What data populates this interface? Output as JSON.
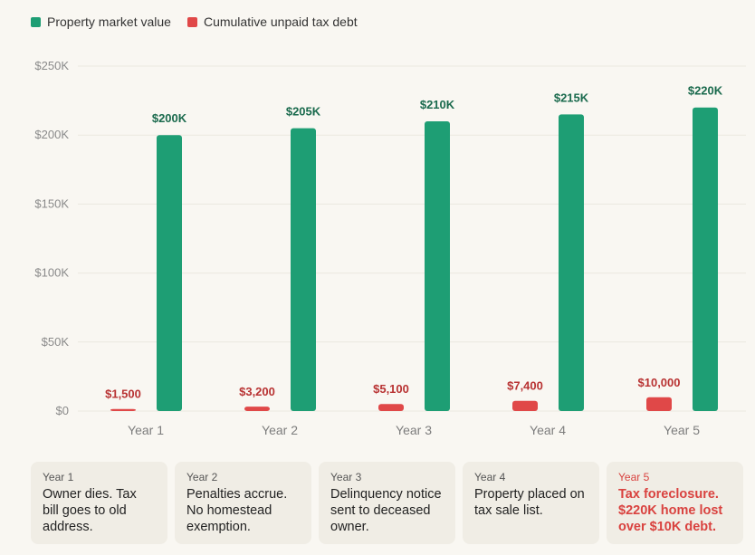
{
  "legend": {
    "market_label": "Property market value",
    "debt_label": "Cumulative unpaid tax debt"
  },
  "colors": {
    "market": "#1e9e74",
    "debt": "#e04848",
    "market_label": "#1a6a4d",
    "debt_label": "#b83232"
  },
  "chart_data": {
    "type": "bar",
    "categories": [
      "Year 1",
      "Year 2",
      "Year 3",
      "Year 4",
      "Year 5"
    ],
    "series": [
      {
        "name": "Cumulative unpaid tax debt",
        "values": [
          1500,
          3200,
          5100,
          7400,
          10000
        ],
        "labels": [
          "$1,500",
          "$3,200",
          "$5,100",
          "$7,400",
          "$10,000"
        ]
      },
      {
        "name": "Property market value",
        "values": [
          200000,
          205000,
          210000,
          215000,
          220000
        ],
        "labels": [
          "$200K",
          "$205K",
          "$210K",
          "$215K",
          "$220K"
        ]
      }
    ],
    "ylim": [
      0,
      250000
    ],
    "yticks": [
      0,
      50000,
      100000,
      150000,
      200000,
      250000
    ],
    "ytick_labels": [
      "$0",
      "$50K",
      "$100K",
      "$150K",
      "$200K",
      "$250K"
    ],
    "grid": true,
    "legend_position": "top-left"
  },
  "timeline": [
    {
      "year": "Year 1",
      "text": "Owner dies. Tax bill goes to old address."
    },
    {
      "year": "Year 2",
      "text": "Penalties accrue. No homestead exemption."
    },
    {
      "year": "Year 3",
      "text": "Delinquency notice sent to deceased owner."
    },
    {
      "year": "Year 4",
      "text": "Property placed on tax sale list."
    },
    {
      "year": "Year 5",
      "text": "Tax foreclosure. $220K home lost over $10K debt."
    }
  ]
}
